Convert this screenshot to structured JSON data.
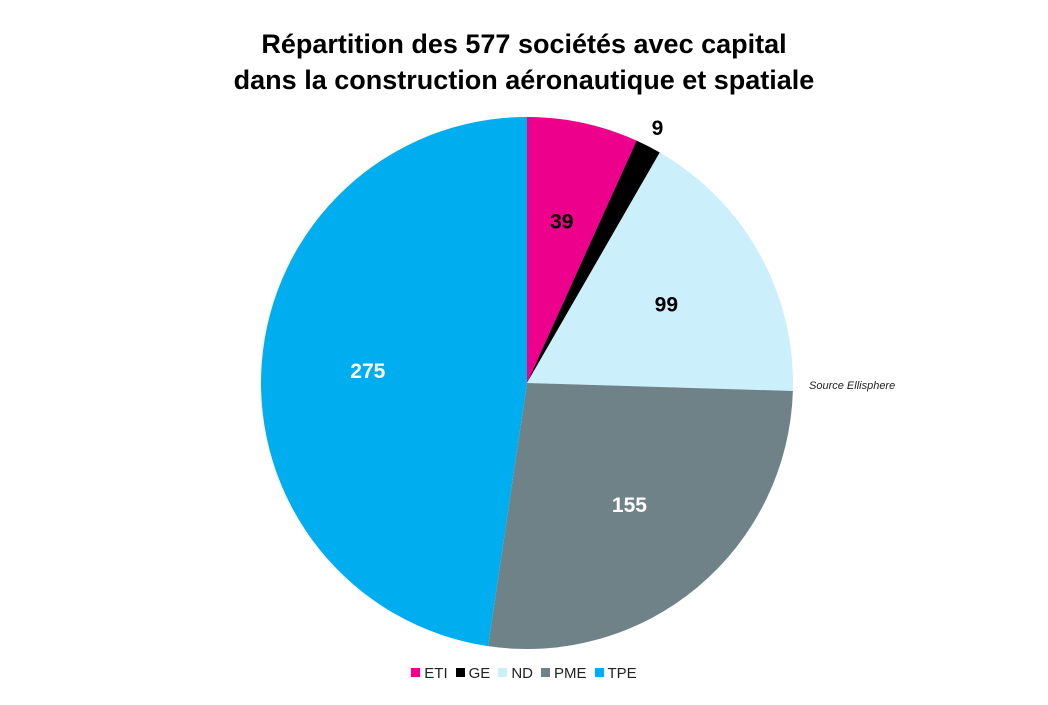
{
  "chart_data": {
    "type": "pie",
    "title": [
      "Répartition des 577 sociétés avec capital",
      "dans la construction aéronautique et spatiale"
    ],
    "categories": [
      "ETI",
      "GE",
      "ND",
      "PME",
      "TPE"
    ],
    "values": [
      39,
      9,
      99,
      155,
      275
    ],
    "colors": [
      "#ec008c",
      "#000000",
      "#cceffc",
      "#6e8288",
      "#00adef"
    ],
    "label_colors": [
      "#000000",
      "#000000",
      "#000000",
      "#ffffff",
      "#ffffff"
    ],
    "start_angle_deg": 0,
    "direction": "clockwise",
    "legend_position": "bottom",
    "annotation": "Source Ellisphere"
  }
}
